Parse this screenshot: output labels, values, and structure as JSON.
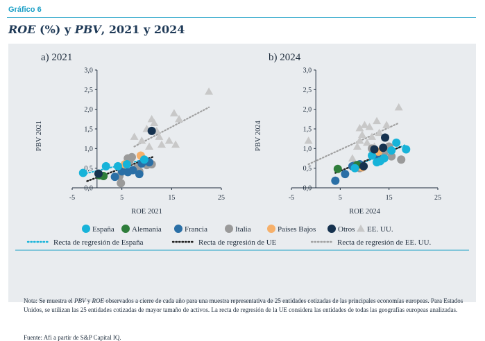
{
  "label": "Gráfico 6",
  "title": {
    "part1": "ROE",
    "part2": " (%) y ",
    "part3": "PBV",
    "part4": ", 2021 y 2024"
  },
  "legend": {
    "spain": "España",
    "germany": "Alemania",
    "france": "Francia",
    "italy": "Italia",
    "netherlands": "Países Bajos",
    "others": "Otros",
    "usa": "EE. UU.",
    "reg_spain": "Recta de regresión de España",
    "reg_eu": "Recta de regresión de UE",
    "reg_usa": "Recta de regresión de EE. UU."
  },
  "colors": {
    "spain": "#17b3d9",
    "germany": "#2e7d3a",
    "france": "#2a6fa6",
    "italy": "#9a9a9a",
    "netherlands": "#f6b06a",
    "others": "#16324f",
    "usa": "#c8c8c8",
    "reg_eu": "#1a1a1a",
    "reg_usa": "#a0a0a0"
  },
  "note": {
    "t1": "Nota: Se muestra el ",
    "t2": "PBV",
    "t3": " y ",
    "t4": "ROE",
    "t5": " observados a cierre de cada año para una muestra representativa de 25 entidades cotizadas de las principales economías europeas. Para Estados Unidos, se utilizan las 25 entidades cotizadas de mayor tamaño de activos. La recta de regresión de la UE considera las entidades de todas las geografías europeas analizadas."
  },
  "source": "Fuente: Afi a partir de S&P Capital IQ.",
  "chart_data": [
    {
      "type": "scatter",
      "title": "a) 2021",
      "xlabel": "ROE 2021",
      "ylabel": "PBV 2021",
      "xlim": [
        -5,
        25
      ],
      "ylim": [
        0,
        3
      ],
      "xticks": [
        "-5",
        "5",
        "15",
        "25"
      ],
      "yticks": [
        "0,0",
        "0,5",
        "1,0",
        "1,5",
        "2,0",
        "2,5",
        "3,0"
      ],
      "series": [
        {
          "name": "España",
          "key": "spain",
          "points": [
            [
              -2.8,
              0.38
            ],
            [
              1.8,
              0.55
            ],
            [
              4.2,
              0.55
            ],
            [
              6.0,
              0.6
            ],
            [
              9.5,
              0.72
            ]
          ]
        },
        {
          "name": "Alemania",
          "key": "germany",
          "points": [
            [
              0.5,
              0.32
            ],
            [
              1.3,
              0.3
            ]
          ]
        },
        {
          "name": "Francia",
          "key": "france",
          "points": [
            [
              3.6,
              0.28
            ],
            [
              5.0,
              0.42
            ],
            [
              6.2,
              0.4
            ],
            [
              7.2,
              0.45
            ],
            [
              8.5,
              0.35
            ],
            [
              9.0,
              0.62
            ],
            [
              10.5,
              0.65
            ]
          ]
        },
        {
          "name": "Italia",
          "key": "italy",
          "points": [
            [
              4.5,
              0.3
            ],
            [
              4.8,
              0.12
            ],
            [
              5.5,
              0.55
            ],
            [
              6.5,
              0.68
            ],
            [
              7.0,
              0.78
            ],
            [
              8.0,
              0.5
            ],
            [
              8.5,
              0.42
            ],
            [
              10.0,
              0.58
            ],
            [
              11.0,
              0.6
            ],
            [
              6.2,
              0.75
            ]
          ]
        },
        {
          "name": "Países Bajos",
          "key": "netherlands",
          "points": [
            [
              5.6,
              0.6
            ],
            [
              8.8,
              0.82
            ]
          ]
        },
        {
          "name": "Otros",
          "key": "others",
          "points": [
            [
              0.3,
              0.36
            ],
            [
              11.0,
              1.45
            ]
          ]
        },
        {
          "name": "EE. UU.",
          "key": "usa",
          "points": [
            [
              7.5,
              1.3
            ],
            [
              9.0,
              1.2
            ],
            [
              10.5,
              1.05
            ],
            [
              11.0,
              1.75
            ],
            [
              11.5,
              1.65
            ],
            [
              12.0,
              1.45
            ],
            [
              12.5,
              1.3
            ],
            [
              13.0,
              1.1
            ],
            [
              14.5,
              1.2
            ],
            [
              15.5,
              1.9
            ],
            [
              15.8,
              1.1
            ],
            [
              16.5,
              1.75
            ],
            [
              22.5,
              2.45
            ],
            [
              10.0,
              1.5
            ]
          ]
        }
      ],
      "regressions": [
        {
          "name": "Recta de regresión de España",
          "key": "spain",
          "from": [
            -2.8,
            0.35
          ],
          "to": [
            9.5,
            0.72
          ]
        },
        {
          "name": "Recta de regresión de UE",
          "key": "reg_eu",
          "from": [
            -2.0,
            0.17
          ],
          "to": [
            11.5,
            0.8
          ]
        },
        {
          "name": "Recta de regresión de EE. UU.",
          "key": "reg_usa",
          "from": [
            7.5,
            1.05
          ],
          "to": [
            22.5,
            2.05
          ]
        }
      ]
    },
    {
      "type": "scatter",
      "title": "b) 2024",
      "xlabel": "ROE 2024",
      "ylabel": "PBV 2024",
      "xlim": [
        -5,
        25
      ],
      "ylim": [
        0,
        3
      ],
      "xticks": [
        "-5",
        "5",
        "15",
        "25"
      ],
      "yticks": [
        "0,0",
        "0,5",
        "1,0",
        "1,5",
        "2,0",
        "2,5",
        "3,0"
      ],
      "series": [
        {
          "name": "España",
          "key": "spain",
          "points": [
            [
              8.0,
              0.5
            ],
            [
              12.5,
              0.65
            ],
            [
              13.2,
              0.68
            ],
            [
              15.5,
              0.95
            ],
            [
              16.5,
              1.15
            ],
            [
              18.5,
              0.98
            ],
            [
              11.5,
              0.82
            ],
            [
              14.0,
              0.75
            ]
          ]
        },
        {
          "name": "Alemania",
          "key": "germany",
          "points": [
            [
              4.5,
              0.48
            ],
            [
              8.5,
              0.58
            ]
          ]
        },
        {
          "name": "Francia",
          "key": "france",
          "points": [
            [
              4.0,
              0.18
            ],
            [
              6.0,
              0.35
            ],
            [
              7.5,
              0.55
            ],
            [
              9.0,
              0.6
            ],
            [
              12.8,
              0.75
            ]
          ]
        },
        {
          "name": "Italia",
          "key": "italy",
          "points": [
            [
              8.0,
              0.58
            ],
            [
              9.0,
              0.5
            ],
            [
              11.5,
              1.0
            ],
            [
              12.5,
              0.85
            ],
            [
              15.0,
              1.05
            ],
            [
              15.5,
              0.8
            ],
            [
              17.5,
              0.72
            ],
            [
              14.0,
              0.9
            ]
          ]
        },
        {
          "name": "Países Bajos",
          "key": "netherlands",
          "points": [
            [
              9.5,
              0.52
            ],
            [
              12.8,
              0.92
            ]
          ]
        },
        {
          "name": "Otros",
          "key": "others",
          "points": [
            [
              9.8,
              0.55
            ],
            [
              12.0,
              0.98
            ],
            [
              13.8,
              1.02
            ],
            [
              14.2,
              1.28
            ]
          ]
        },
        {
          "name": "EE. UU.",
          "key": "usa",
          "points": [
            [
              -1.5,
              1.2
            ],
            [
              7.5,
              0.75
            ],
            [
              8.5,
              1.05
            ],
            [
              9.0,
              1.2
            ],
            [
              9.5,
              1.35
            ],
            [
              10.0,
              1.6
            ],
            [
              10.5,
              1.15
            ],
            [
              11.0,
              1.55
            ],
            [
              11.5,
              1.3
            ],
            [
              12.5,
              1.7
            ],
            [
              12.0,
              1.05
            ],
            [
              13.0,
              1.4
            ],
            [
              14.5,
              1.6
            ],
            [
              17.0,
              2.05
            ],
            [
              9.0,
              1.52
            ]
          ]
        }
      ],
      "regressions": [
        {
          "name": "Recta de regresión de España",
          "key": "spain",
          "from": [
            8.0,
            0.55
          ],
          "to": [
            18.5,
            1.1
          ]
        },
        {
          "name": "Recta de regresión de UE",
          "key": "reg_eu",
          "from": [
            4.0,
            0.38
          ],
          "to": [
            17.5,
            1.05
          ]
        },
        {
          "name": "Recta de regresión de EE. UU.",
          "key": "reg_usa",
          "from": [
            -1.5,
            0.6
          ],
          "to": [
            17.0,
            1.65
          ]
        }
      ]
    }
  ]
}
